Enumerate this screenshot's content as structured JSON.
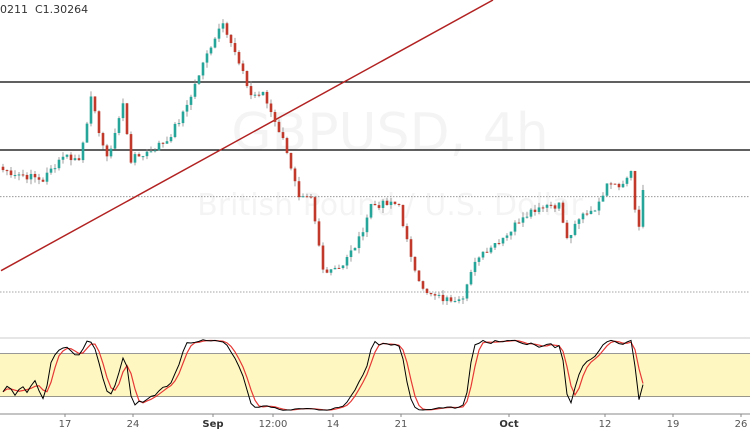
{
  "header": {
    "ohlc_text": "0211  C1.30264"
  },
  "watermark": {
    "symbol": "GBPUSD, 4h",
    "description": "British Pound / U.S. Dollar"
  },
  "colors": {
    "up": "#26a69a",
    "down": "#c0392b",
    "wick": "#888888",
    "trendline": "#b22222",
    "level": "#000000",
    "stoch_k": "#000000",
    "stoch_d": "#e53935",
    "band": "#fff7c2"
  },
  "chart_data": {
    "type": "candlestick",
    "title": "",
    "price_keypoints": [
      [
        0,
        1.3056
      ],
      [
        10,
        1.3041
      ],
      [
        15,
        1.3079
      ],
      [
        19,
        1.3071
      ],
      [
        22,
        1.3161
      ],
      [
        26,
        1.3071
      ],
      [
        30,
        1.3154
      ],
      [
        32,
        1.3071
      ],
      [
        37,
        1.3086
      ],
      [
        41,
        1.3101
      ],
      [
        45,
        1.3139
      ],
      [
        49,
        1.3199
      ],
      [
        52,
        1.3244
      ],
      [
        55,
        1.3281
      ],
      [
        59,
        1.3214
      ],
      [
        62,
        1.3169
      ],
      [
        65,
        1.3169
      ],
      [
        68,
        1.3131
      ],
      [
        71,
        1.3086
      ],
      [
        74,
        1.3011
      ],
      [
        77,
        1.3011
      ],
      [
        80,
        1.2906
      ],
      [
        85,
        1.2914
      ],
      [
        89,
        1.2951
      ],
      [
        92,
        1.3004
      ],
      [
        99,
        1.3004
      ],
      [
        102,
        1.2921
      ],
      [
        106,
        1.2869
      ],
      [
        111,
        1.2861
      ],
      [
        115,
        1.2869
      ],
      [
        119,
        1.2929
      ],
      [
        124,
        1.2951
      ],
      [
        127,
        1.2966
      ],
      [
        130,
        1.2989
      ],
      [
        135,
        1.3004
      ],
      [
        139,
        1.3004
      ],
      [
        141,
        1.2951
      ],
      [
        145,
        1.2989
      ],
      [
        149,
        1.3004
      ],
      [
        151,
        1.3041
      ],
      [
        155,
        1.3034
      ],
      [
        157,
        1.3056
      ],
      [
        158,
        1.2996
      ],
      [
        159,
        1.2966
      ],
      [
        160,
        1.3026
      ]
    ],
    "ylim": [
      1.2816,
      1.3311
    ],
    "horizontal_levels": [
      1.3188,
      1.3086
    ],
    "dotted_levels": [
      1.3016,
      1.2873
    ],
    "trendline": [
      [
        0,
        1.2905
      ],
      [
        123,
        1.3311
      ]
    ],
    "x_tick_labels": [
      {
        "bar": 16,
        "label": "17",
        "bold": false
      },
      {
        "bar": 33,
        "label": "24",
        "bold": false
      },
      {
        "bar": 53,
        "label": "Sep",
        "bold": true
      },
      {
        "bar": 68,
        "label": "12:00",
        "bold": false
      },
      {
        "bar": 83,
        "label": "14",
        "bold": false
      },
      {
        "bar": 100,
        "label": "21",
        "bold": false
      },
      {
        "bar": 127,
        "label": "Oct",
        "bold": true
      },
      {
        "bar": 151,
        "label": "12",
        "bold": false
      },
      {
        "bar": 168,
        "label": "19",
        "bold": false
      },
      {
        "bar": 185,
        "label": "26",
        "bold": false
      }
    ],
    "stochastic": {
      "band": [
        20,
        80
      ],
      "ylim": [
        0,
        100
      ]
    }
  }
}
